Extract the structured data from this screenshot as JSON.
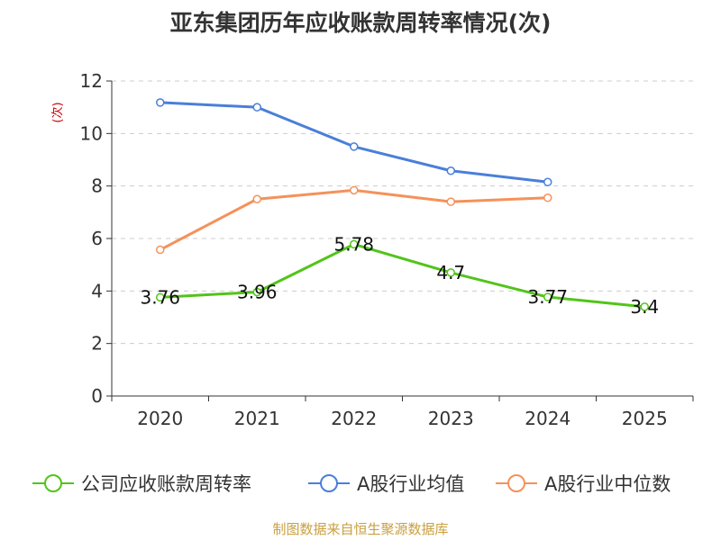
{
  "chart_data": {
    "type": "line",
    "title": "亚东集团历年应收账款周转率情况(次)",
    "ylabel": "(次)",
    "xlabel": "",
    "categories": [
      "2020",
      "2021",
      "2022",
      "2023",
      "2024",
      "2025"
    ],
    "ylim": [
      0,
      12
    ],
    "yticks": [
      0,
      2,
      4,
      6,
      8,
      10,
      12
    ],
    "grid": true,
    "legend_position": "bottom",
    "series": [
      {
        "name": "公司应收账款周转率",
        "color": "#52c41a",
        "values": [
          3.76,
          3.96,
          5.78,
          4.7,
          3.77,
          3.4
        ],
        "labels": [
          "3.76",
          "3.96",
          "5.78",
          "4.7",
          "3.77",
          "3.4"
        ]
      },
      {
        "name": "A股行业均值",
        "color": "#4a7fd9",
        "values": [
          11.18,
          11.0,
          9.5,
          8.58,
          8.15,
          null
        ],
        "labels": null
      },
      {
        "name": "A股行业中位数",
        "color": "#f5915a",
        "values": [
          5.57,
          7.5,
          7.84,
          7.4,
          7.55,
          null
        ],
        "labels": null
      }
    ],
    "source": "制图数据来自恒生聚源数据库"
  }
}
